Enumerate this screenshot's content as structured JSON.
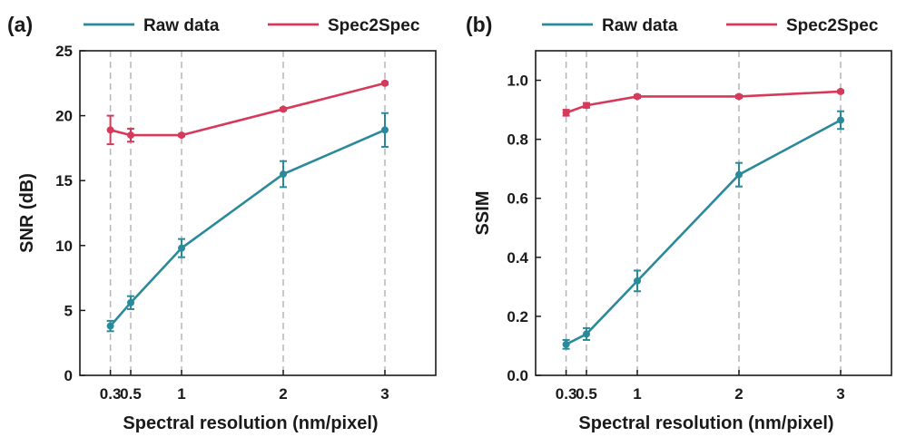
{
  "colors": {
    "raw": "#2a8a9a",
    "spec2spec": "#d63a5a",
    "guide": "#b5b5b5",
    "axis": "#1a1a1a"
  },
  "chart_data": [
    {
      "type": "line",
      "panel_label": "(a)",
      "title": "",
      "xlabel": "Spectral resolution (nm/pixel)",
      "ylabel": "SNR (dB)",
      "x": [
        0.3,
        0.5,
        1,
        2,
        3
      ],
      "x_tick_labels": [
        "0.3",
        "0.5",
        "1",
        "2",
        "3"
      ],
      "xlim": [
        0.0,
        3.5
      ],
      "ylim": [
        0,
        25
      ],
      "y_ticks": [
        0,
        5,
        10,
        15,
        20,
        25
      ],
      "y_tick_labels": [
        "0",
        "5",
        "10",
        "15",
        "20",
        "25"
      ],
      "vertical_guides_at_x": true,
      "grid": false,
      "legend": "top",
      "series": [
        {
          "name": "Raw data",
          "values": [
            3.8,
            5.6,
            9.8,
            15.5,
            18.9
          ],
          "errors": [
            0.4,
            0.5,
            0.7,
            1.0,
            1.3
          ]
        },
        {
          "name": "Spec2Spec",
          "values": [
            18.9,
            18.5,
            18.5,
            20.5,
            22.5
          ],
          "errors": [
            1.1,
            0.5,
            0.1,
            0.1,
            0.1
          ]
        }
      ]
    },
    {
      "type": "line",
      "panel_label": "(b)",
      "title": "",
      "xlabel": "Spectral resolution (nm/pixel)",
      "ylabel": "SSIM",
      "x": [
        0.3,
        0.5,
        1,
        2,
        3
      ],
      "x_tick_labels": [
        "0.3",
        "0.5",
        "1",
        "2",
        "3"
      ],
      "xlim": [
        0.0,
        3.5
      ],
      "ylim": [
        0.0,
        1.1
      ],
      "y_ticks": [
        0.0,
        0.2,
        0.4,
        0.6,
        0.8,
        1.0
      ],
      "y_tick_labels": [
        "0.0",
        "0.2",
        "0.4",
        "0.6",
        "0.8",
        "1.0"
      ],
      "vertical_guides_at_x": true,
      "grid": false,
      "legend": "top",
      "series": [
        {
          "name": "Raw data",
          "values": [
            0.105,
            0.14,
            0.32,
            0.68,
            0.865
          ],
          "errors": [
            0.015,
            0.02,
            0.035,
            0.04,
            0.03
          ]
        },
        {
          "name": "Spec2Spec",
          "values": [
            0.89,
            0.915,
            0.945,
            0.945,
            0.962
          ],
          "errors": [
            0.01,
            0.008,
            0.005,
            0.005,
            0.004
          ]
        }
      ]
    }
  ]
}
